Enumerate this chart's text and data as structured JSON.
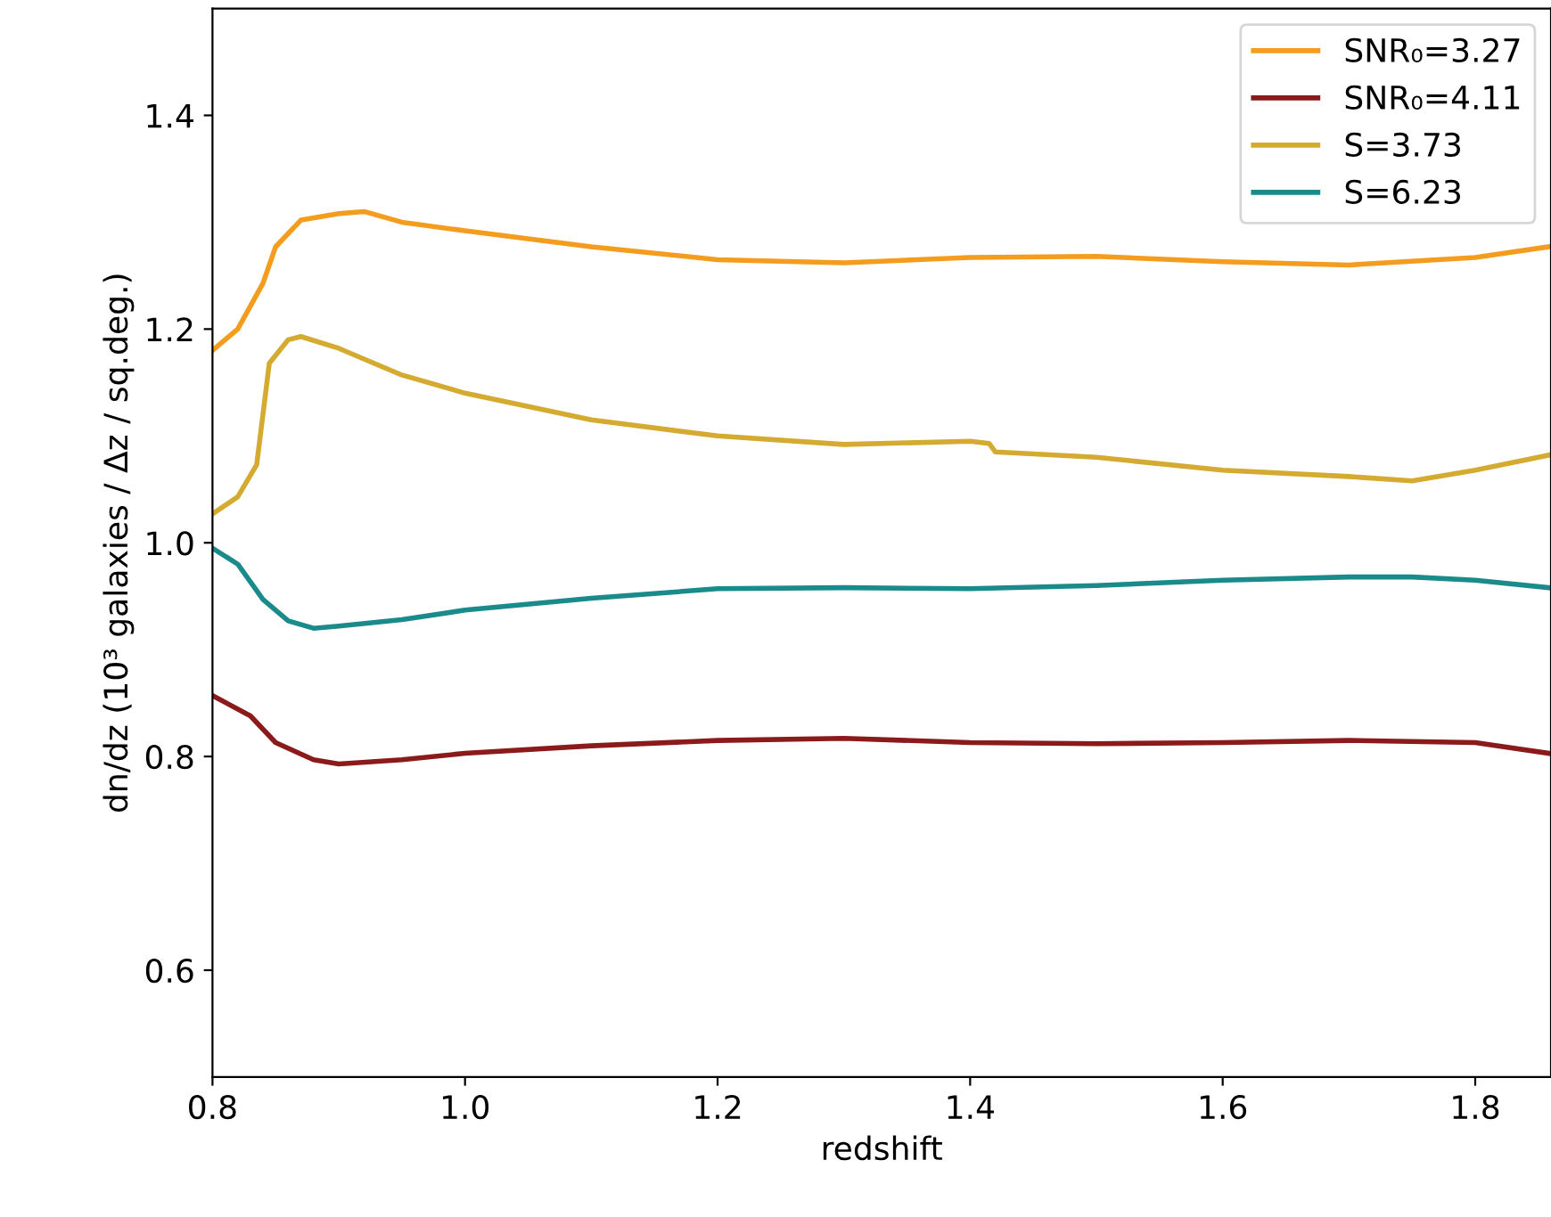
{
  "chart_data": {
    "type": "line",
    "xlabel": "redshift",
    "ylabel": "dn/dz (10³ galaxies / Δz / sq.deg.)",
    "xlim": [
      0.8,
      1.86
    ],
    "ylim": [
      0.5,
      1.5
    ],
    "xticks": [
      0.8,
      {
        "value": 1,
        "label": "1.0"
      },
      1.2,
      1.4,
      1.6,
      1.8
    ],
    "yticks": [
      0.6,
      0.8,
      {
        "value": 1,
        "label": "1.0"
      },
      1.2,
      1.4
    ],
    "grid": false,
    "legend": "top right",
    "marker": "none",
    "line_style": "solid",
    "series": [
      {
        "name": "SNR₀=3.27",
        "color": "#f39c1e",
        "x": [
          0.8,
          0.82,
          0.84,
          0.85,
          0.87,
          0.9,
          0.92,
          0.95,
          1.0,
          1.1,
          1.2,
          1.3,
          1.4,
          1.5,
          1.6,
          1.7,
          1.8,
          1.858
        ],
        "values": [
          1.18,
          1.2,
          1.243,
          1.277,
          1.302,
          1.308,
          1.31,
          1.3,
          1.292,
          1.277,
          1.265,
          1.262,
          1.267,
          1.268,
          1.263,
          1.26,
          1.267,
          1.277
        ]
      },
      {
        "name": "SNR₀=4.11",
        "color": "#8b1a1a",
        "x": [
          0.8,
          0.83,
          0.85,
          0.88,
          0.9,
          0.95,
          1.0,
          1.1,
          1.2,
          1.3,
          1.4,
          1.5,
          1.6,
          1.7,
          1.8,
          1.858
        ],
        "values": [
          0.857,
          0.838,
          0.813,
          0.797,
          0.793,
          0.797,
          0.803,
          0.81,
          0.815,
          0.817,
          0.813,
          0.812,
          0.813,
          0.815,
          0.813,
          0.803
        ]
      },
      {
        "name": "S=3.73",
        "color": "#d4aa30",
        "x": [
          0.8,
          0.82,
          0.835,
          0.845,
          0.86,
          0.87,
          0.9,
          0.95,
          1.0,
          1.1,
          1.2,
          1.3,
          1.4,
          1.415,
          1.42,
          1.5,
          1.6,
          1.7,
          1.75,
          1.8,
          1.858
        ],
        "values": [
          1.027,
          1.043,
          1.073,
          1.168,
          1.19,
          1.193,
          1.182,
          1.157,
          1.14,
          1.115,
          1.1,
          1.092,
          1.095,
          1.093,
          1.085,
          1.08,
          1.068,
          1.062,
          1.058,
          1.068,
          1.082
        ]
      },
      {
        "name": "S=6.23",
        "color": "#1a8a8a",
        "x": [
          0.8,
          0.82,
          0.84,
          0.86,
          0.88,
          0.9,
          0.95,
          1.0,
          1.1,
          1.2,
          1.3,
          1.4,
          1.5,
          1.6,
          1.7,
          1.75,
          1.8,
          1.858
        ],
        "values": [
          0.995,
          0.98,
          0.947,
          0.927,
          0.92,
          0.922,
          0.928,
          0.937,
          0.948,
          0.957,
          0.958,
          0.957,
          0.96,
          0.965,
          0.968,
          0.968,
          0.965,
          0.958
        ]
      }
    ]
  }
}
